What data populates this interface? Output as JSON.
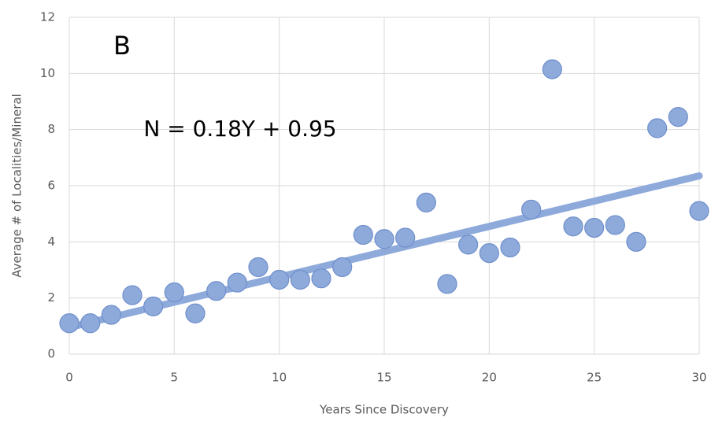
{
  "chart_data": {
    "type": "scatter",
    "panel_label": "B",
    "annotation": "N = 0.18Y + 0.95",
    "x_label": "Years Since Discovery",
    "y_label": "Average # of Localities/Mineral",
    "x": [
      0,
      1,
      2,
      3,
      4,
      5,
      6,
      7,
      8,
      9,
      10,
      11,
      12,
      13,
      14,
      15,
      16,
      17,
      18,
      19,
      20,
      21,
      22,
      23,
      24,
      25,
      26,
      27,
      28,
      29,
      30
    ],
    "series": [
      {
        "color": "#8eaadb",
        "values": [
          1.1,
          1.1,
          1.4,
          2.1,
          1.7,
          2.2,
          1.45,
          2.25,
          2.55,
          3.1,
          2.65,
          2.65,
          2.7,
          3.1,
          4.25,
          4.1,
          4.15,
          5.4,
          2.5,
          3.9,
          3.6,
          3.8,
          5.15,
          10.15,
          4.55,
          4.5,
          4.6,
          4.0,
          8.05,
          8.45,
          5.1
        ]
      }
    ],
    "trendline": {
      "slope": 0.18,
      "intercept": 0.95,
      "color": "#8eaadb"
    },
    "xlim": [
      0,
      30
    ],
    "xticks": [
      0,
      5,
      10,
      15,
      20,
      25,
      30
    ],
    "ylim": [
      0,
      12
    ],
    "yticks": [
      0,
      2,
      4,
      6,
      8,
      10,
      12
    ],
    "grid": true
  }
}
